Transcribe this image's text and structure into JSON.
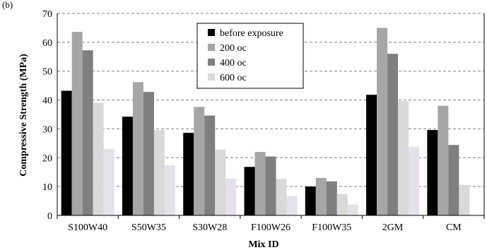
{
  "chart_data": {
    "type": "bar",
    "top_label": "(b)",
    "xlabel": "Mix ID",
    "ylabel": "Compressive Strength (MPa)",
    "ylim": [
      0,
      70
    ],
    "yticks": [
      0,
      10,
      20,
      30,
      40,
      50,
      60,
      70
    ],
    "grid": true,
    "legend_position": "top-center",
    "categories": [
      "S100W40",
      "S50W35",
      "S30W28",
      "F100W26",
      "F100W35",
      "2GM",
      "CM"
    ],
    "series": [
      {
        "name": "before exposure",
        "color": "#000000",
        "values": [
          43.2,
          34.2,
          28.6,
          16.8,
          10.0,
          41.8,
          29.6
        ]
      },
      {
        "name": "200 oc",
        "color": "#a6a6a6",
        "values": [
          63.6,
          46.2,
          37.6,
          22.0,
          13.0,
          65.0,
          38.0
        ]
      },
      {
        "name": "400 oc",
        "color": "#7f7f7f",
        "values": [
          57.2,
          42.8,
          34.6,
          20.4,
          11.8,
          56.0,
          24.4
        ]
      },
      {
        "name": "600 oc",
        "color": "#d9d9d9",
        "values": [
          39.0,
          29.6,
          22.8,
          12.6,
          7.4,
          39.6,
          10.6
        ]
      },
      {
        "name": "",
        "color": "#e6e0ec",
        "values": [
          23.0,
          17.4,
          12.8,
          6.8,
          3.8,
          23.8,
          null
        ]
      }
    ]
  }
}
